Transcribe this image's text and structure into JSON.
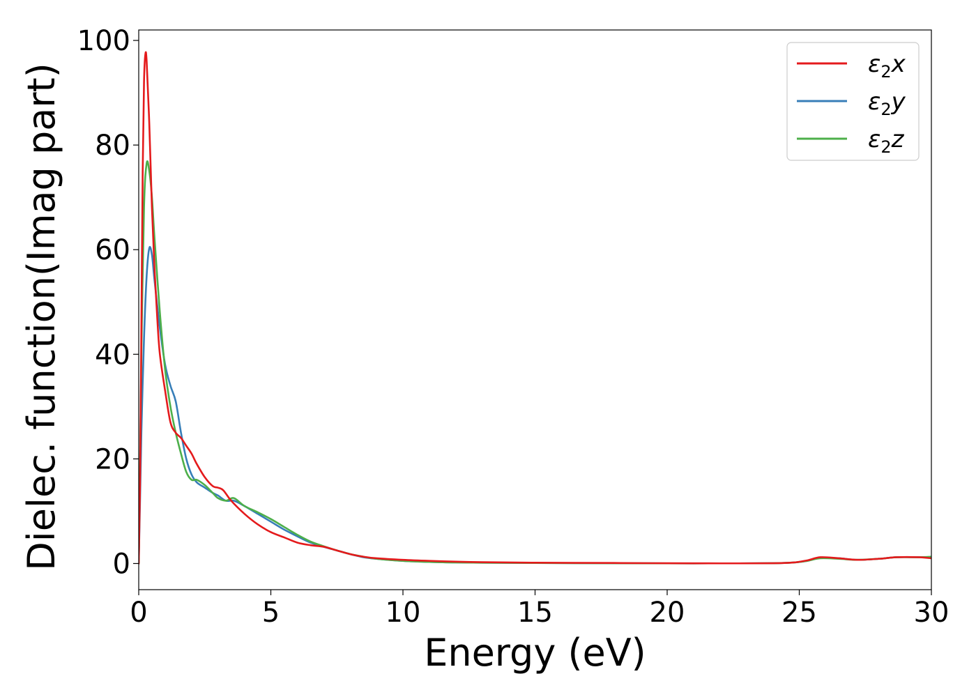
{
  "chart_data": {
    "type": "line",
    "title": "",
    "xlabel": "Energy (eV)",
    "ylabel": "Dielec. function(Imag part)",
    "xlim": [
      0,
      30
    ],
    "ylim": [
      -5,
      102
    ],
    "xticks": [
      0,
      5,
      10,
      15,
      20,
      25,
      30
    ],
    "yticks": [
      0,
      20,
      40,
      60,
      80,
      100
    ],
    "grid": false,
    "legend_position": "top-right",
    "series": [
      {
        "name": "ε2x",
        "color": "#e41a1c",
        "x": [
          0,
          0.05,
          0.1,
          0.15,
          0.2,
          0.25,
          0.3,
          0.4,
          0.5,
          0.6,
          0.7,
          0.8,
          1.0,
          1.2,
          1.4,
          1.6,
          1.8,
          2.0,
          2.2,
          2.5,
          2.8,
          3.0,
          3.2,
          3.5,
          4.0,
          4.5,
          5.0,
          5.5,
          6.0,
          6.5,
          7.0,
          7.5,
          8.0,
          8.5,
          9.0,
          10,
          11,
          12,
          13,
          15,
          18,
          20,
          22,
          24,
          24.8,
          25.3,
          25.8,
          26.5,
          27.2,
          28.0,
          28.7,
          29.5,
          30
        ],
        "y": [
          0,
          15,
          45,
          75,
          92,
          97.3,
          96,
          84,
          68,
          56,
          47,
          40,
          33,
          27,
          25,
          24,
          22.5,
          21,
          19,
          16.5,
          14.8,
          14.5,
          14,
          12,
          9.5,
          7.5,
          6.0,
          5.0,
          4.0,
          3.5,
          3.2,
          2.5,
          1.8,
          1.3,
          1.0,
          0.7,
          0.5,
          0.35,
          0.25,
          0.15,
          0.1,
          0.05,
          0.03,
          0.05,
          0.2,
          0.6,
          1.2,
          1.0,
          0.7,
          0.9,
          1.2,
          1.2,
          1.0
        ]
      },
      {
        "name": "ε2y",
        "color": "#377eb8",
        "x": [
          0,
          0.05,
          0.1,
          0.2,
          0.3,
          0.4,
          0.5,
          0.6,
          0.8,
          1.0,
          1.2,
          1.4,
          1.6,
          1.8,
          2.0,
          2.2,
          2.5,
          2.8,
          3.0,
          3.3,
          3.6,
          4.0,
          4.5,
          5.0,
          5.5,
          6.0,
          6.5,
          7.0,
          7.5,
          8.0,
          8.5,
          9.0,
          10,
          11,
          12,
          13,
          15,
          18,
          20,
          22,
          24,
          24.8,
          25.3,
          25.8,
          26.5,
          27.2,
          28.0,
          28.7,
          29.5,
          30
        ],
        "y": [
          0,
          12,
          25,
          43,
          55,
          60.3,
          59,
          54,
          45,
          38,
          34,
          31,
          25,
          20,
          17,
          15.5,
          14.5,
          13.5,
          13,
          12,
          12,
          11,
          9.5,
          8.0,
          6.5,
          5.2,
          4.0,
          3.2,
          2.5,
          1.8,
          1.2,
          0.9,
          0.5,
          0.3,
          0.2,
          0.15,
          0.1,
          0.05,
          0.03,
          0.03,
          0.05,
          0.2,
          0.5,
          1.1,
          1.0,
          0.7,
          0.9,
          1.2,
          1.2,
          1.2
        ]
      },
      {
        "name": "ε2z",
        "color": "#4daf4a",
        "x": [
          0,
          0.05,
          0.1,
          0.2,
          0.3,
          0.4,
          0.5,
          0.6,
          0.8,
          1.0,
          1.2,
          1.4,
          1.6,
          1.8,
          2.0,
          2.2,
          2.5,
          2.8,
          3.0,
          3.3,
          3.6,
          4.0,
          4.5,
          5.0,
          5.5,
          6.0,
          6.5,
          7.0,
          7.5,
          8.0,
          8.5,
          9.0,
          10,
          11,
          12,
          13,
          15,
          18,
          20,
          22,
          24,
          24.8,
          25.3,
          25.8,
          26.5,
          27.2,
          28.0,
          28.7,
          29.5,
          30
        ],
        "y": [
          0,
          18,
          40,
          68,
          76.5,
          75,
          70,
          62,
          48,
          37,
          30,
          25,
          21,
          17.5,
          16,
          16,
          15,
          13.5,
          12.5,
          12,
          12.5,
          11,
          9.8,
          8.5,
          7.0,
          5.5,
          4.2,
          3.3,
          2.5,
          1.8,
          1.3,
          0.9,
          0.5,
          0.3,
          0.2,
          0.15,
          0.1,
          0.05,
          0.03,
          0.03,
          0.05,
          0.2,
          0.5,
          1.0,
          0.9,
          0.7,
          0.9,
          1.2,
          1.2,
          1.3
        ]
      }
    ]
  }
}
